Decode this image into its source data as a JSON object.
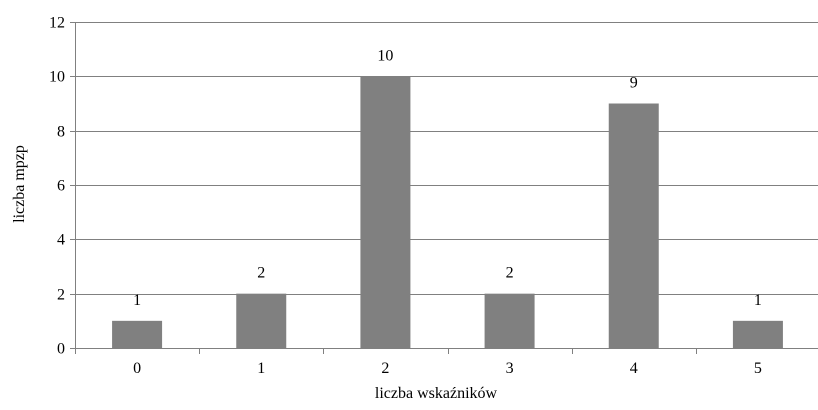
{
  "chart_data": {
    "type": "bar",
    "categories": [
      "0",
      "1",
      "2",
      "3",
      "4",
      "5"
    ],
    "values": [
      1,
      2,
      10,
      2,
      9,
      1
    ],
    "data_labels": [
      "1",
      "2",
      "10",
      "2",
      "9",
      "1"
    ],
    "title": "",
    "xlabel": "liczba wskaźników",
    "ylabel": "liczba mpzp",
    "ylim": [
      0,
      12
    ],
    "yticks": [
      0,
      2,
      4,
      6,
      8,
      10,
      12
    ],
    "ytick_labels": [
      "0",
      "2",
      "4",
      "6",
      "8",
      "10",
      "12"
    ],
    "grid": true,
    "legend": "none",
    "colors": {
      "bar": "#808080",
      "grid": "#808080",
      "axis": "#808080",
      "text": "#000000",
      "background": "#ffffff"
    }
  }
}
